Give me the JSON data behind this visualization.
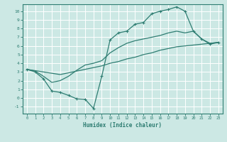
{
  "xlabel": "Humidex (Indice chaleur)",
  "bg_color": "#cce8e4",
  "grid_color": "#ffffff",
  "line_color": "#2e7d72",
  "xlim": [
    -0.5,
    23.5
  ],
  "ylim": [
    -1.8,
    10.8
  ],
  "xticks": [
    0,
    1,
    2,
    3,
    4,
    5,
    6,
    7,
    8,
    9,
    10,
    11,
    12,
    13,
    14,
    15,
    16,
    17,
    18,
    19,
    20,
    21,
    22,
    23
  ],
  "yticks": [
    -1,
    0,
    1,
    2,
    3,
    4,
    5,
    6,
    7,
    8,
    9,
    10
  ],
  "line1_x": [
    0,
    1,
    2,
    3,
    4,
    5,
    6,
    7,
    8,
    9,
    10,
    11,
    12,
    13,
    14,
    15,
    16,
    17,
    18,
    19,
    20,
    21,
    22,
    23
  ],
  "line1_y": [
    3.3,
    3.0,
    2.2,
    0.8,
    0.65,
    0.3,
    -0.1,
    -0.15,
    -1.2,
    2.5,
    6.7,
    7.5,
    7.7,
    8.5,
    8.7,
    9.7,
    10.0,
    10.2,
    10.5,
    10.0,
    7.7,
    6.8,
    6.2,
    6.4
  ],
  "line2_x": [
    0,
    1,
    2,
    3,
    4,
    5,
    6,
    7,
    8,
    9,
    10,
    11,
    12,
    13,
    14,
    15,
    16,
    17,
    18,
    19,
    20,
    21,
    22,
    23
  ],
  "line2_y": [
    3.3,
    3.15,
    3.0,
    2.85,
    2.7,
    2.9,
    3.1,
    3.3,
    3.5,
    3.7,
    4.0,
    4.2,
    4.5,
    4.7,
    5.0,
    5.2,
    5.5,
    5.7,
    5.9,
    6.0,
    6.1,
    6.2,
    6.3,
    6.4
  ],
  "line3_x": [
    0,
    1,
    2,
    3,
    4,
    5,
    6,
    7,
    8,
    9,
    10,
    11,
    12,
    13,
    14,
    15,
    16,
    17,
    18,
    19,
    20,
    21,
    22,
    23
  ],
  "line3_y": [
    3.3,
    3.1,
    2.5,
    1.8,
    2.0,
    2.5,
    3.2,
    3.8,
    4.0,
    4.3,
    5.2,
    5.8,
    6.3,
    6.6,
    6.8,
    7.0,
    7.2,
    7.5,
    7.7,
    7.5,
    7.7,
    6.8,
    6.3,
    6.4
  ]
}
